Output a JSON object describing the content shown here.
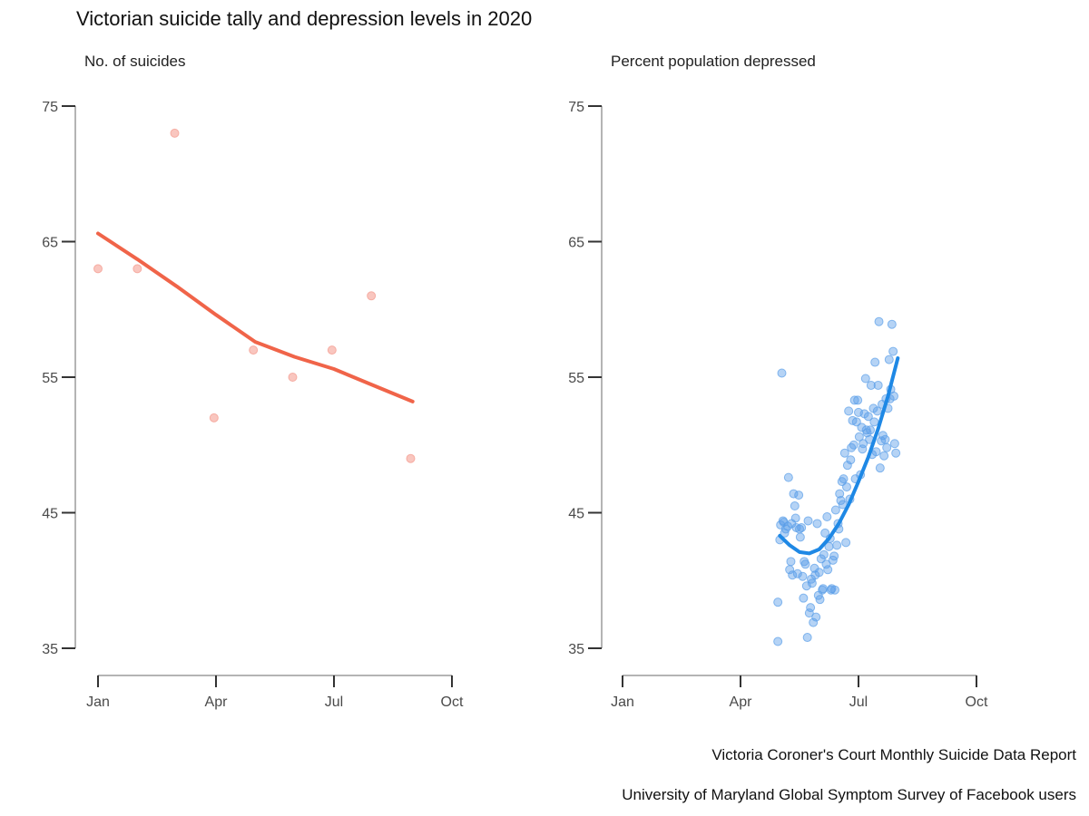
{
  "title": "Victorian suicide tally and depression levels in 2020",
  "captions": [
    "Victoria Coroner's Court Monthly Suicide Data Report",
    "University of Maryland Global Symptom Survey of Facebook users"
  ],
  "chart_data": [
    {
      "type": "scatter",
      "subtitle": "No. of suicides",
      "color": "#f06449",
      "point_color": "#f4978a",
      "x_unit": "month index (0 = Jan 1)",
      "xlim": [
        0,
        9
      ],
      "ylim": [
        35,
        75
      ],
      "xticks": [
        {
          "v": 0,
          "label": "Jan"
        },
        {
          "v": 3,
          "label": "Apr"
        },
        {
          "v": 6,
          "label": "Jul"
        },
        {
          "v": 9,
          "label": "Oct"
        }
      ],
      "yticks": [
        75,
        65,
        55,
        45,
        35
      ],
      "points": [
        {
          "x": 0.0,
          "y": 63
        },
        {
          "x": 1.0,
          "y": 63
        },
        {
          "x": 1.95,
          "y": 73
        },
        {
          "x": 2.95,
          "y": 52
        },
        {
          "x": 3.95,
          "y": 57
        },
        {
          "x": 4.95,
          "y": 55
        },
        {
          "x": 5.95,
          "y": 57
        },
        {
          "x": 6.95,
          "y": 61
        },
        {
          "x": 7.95,
          "y": 49
        }
      ],
      "trend": [
        {
          "x": 0.0,
          "y": 65.6
        },
        {
          "x": 1.0,
          "y": 63.7
        },
        {
          "x": 2.0,
          "y": 61.7
        },
        {
          "x": 3.0,
          "y": 59.6
        },
        {
          "x": 4.0,
          "y": 57.6
        },
        {
          "x": 5.0,
          "y": 56.5
        },
        {
          "x": 6.0,
          "y": 55.6
        },
        {
          "x": 7.0,
          "y": 54.4
        },
        {
          "x": 8.0,
          "y": 53.2
        }
      ]
    },
    {
      "type": "scatter",
      "subtitle": "Percent population depressed",
      "color": "#1e88e5",
      "point_color": "#5a9ee8",
      "x_unit": "month index (0 = Jan 1)",
      "xlim": [
        0,
        9
      ],
      "ylim": [
        35,
        75
      ],
      "xticks": [
        {
          "v": 0,
          "label": "Jan"
        },
        {
          "v": 3,
          "label": "Apr"
        },
        {
          "v": 6,
          "label": "Jul"
        },
        {
          "v": 9,
          "label": "Oct"
        }
      ],
      "yticks": [
        75,
        65,
        55,
        45,
        35
      ],
      "points": [
        {
          "x": 3.95,
          "y": 35.5
        },
        {
          "x": 3.95,
          "y": 38.4
        },
        {
          "x": 4.0,
          "y": 43.0
        },
        {
          "x": 4.02,
          "y": 44.1
        },
        {
          "x": 4.05,
          "y": 55.3
        },
        {
          "x": 4.08,
          "y": 44.4
        },
        {
          "x": 4.1,
          "y": 44.3
        },
        {
          "x": 4.12,
          "y": 43.5
        },
        {
          "x": 4.15,
          "y": 43.8
        },
        {
          "x": 4.2,
          "y": 44.0
        },
        {
          "x": 4.22,
          "y": 47.6
        },
        {
          "x": 4.25,
          "y": 40.8
        },
        {
          "x": 4.28,
          "y": 41.4
        },
        {
          "x": 4.3,
          "y": 44.2
        },
        {
          "x": 4.32,
          "y": 40.4
        },
        {
          "x": 4.35,
          "y": 46.4
        },
        {
          "x": 4.38,
          "y": 45.5
        },
        {
          "x": 4.4,
          "y": 44.6
        },
        {
          "x": 4.42,
          "y": 43.9
        },
        {
          "x": 4.45,
          "y": 40.5
        },
        {
          "x": 4.48,
          "y": 46.3
        },
        {
          "x": 4.5,
          "y": 43.8
        },
        {
          "x": 4.52,
          "y": 43.2
        },
        {
          "x": 4.55,
          "y": 43.9
        },
        {
          "x": 4.58,
          "y": 40.3
        },
        {
          "x": 4.6,
          "y": 38.7
        },
        {
          "x": 4.62,
          "y": 41.4
        },
        {
          "x": 4.65,
          "y": 41.2
        },
        {
          "x": 4.68,
          "y": 39.6
        },
        {
          "x": 4.7,
          "y": 35.8
        },
        {
          "x": 4.72,
          "y": 44.4
        },
        {
          "x": 4.75,
          "y": 37.6
        },
        {
          "x": 4.78,
          "y": 38.0
        },
        {
          "x": 4.8,
          "y": 40.1
        },
        {
          "x": 4.82,
          "y": 39.8
        },
        {
          "x": 4.85,
          "y": 36.9
        },
        {
          "x": 4.88,
          "y": 40.9
        },
        {
          "x": 4.9,
          "y": 40.4
        },
        {
          "x": 4.92,
          "y": 37.3
        },
        {
          "x": 4.95,
          "y": 44.2
        },
        {
          "x": 4.98,
          "y": 38.9
        },
        {
          "x": 5.0,
          "y": 40.6
        },
        {
          "x": 5.02,
          "y": 38.6
        },
        {
          "x": 5.05,
          "y": 41.6
        },
        {
          "x": 5.08,
          "y": 39.3
        },
        {
          "x": 5.1,
          "y": 39.4
        },
        {
          "x": 5.12,
          "y": 41.9
        },
        {
          "x": 5.15,
          "y": 43.5
        },
        {
          "x": 5.18,
          "y": 41.2
        },
        {
          "x": 5.2,
          "y": 44.7
        },
        {
          "x": 5.22,
          "y": 40.8
        },
        {
          "x": 5.25,
          "y": 42.5
        },
        {
          "x": 5.28,
          "y": 43.1
        },
        {
          "x": 5.3,
          "y": 39.3
        },
        {
          "x": 5.32,
          "y": 39.4
        },
        {
          "x": 5.35,
          "y": 41.5
        },
        {
          "x": 5.38,
          "y": 41.8
        },
        {
          "x": 5.4,
          "y": 39.3
        },
        {
          "x": 5.42,
          "y": 45.2
        },
        {
          "x": 5.45,
          "y": 42.6
        },
        {
          "x": 5.48,
          "y": 44.2
        },
        {
          "x": 5.5,
          "y": 43.8
        },
        {
          "x": 5.52,
          "y": 46.4
        },
        {
          "x": 5.55,
          "y": 45.9
        },
        {
          "x": 5.58,
          "y": 47.3
        },
        {
          "x": 5.6,
          "y": 45.6
        },
        {
          "x": 5.62,
          "y": 47.5
        },
        {
          "x": 5.65,
          "y": 49.4
        },
        {
          "x": 5.68,
          "y": 42.8
        },
        {
          "x": 5.7,
          "y": 46.9
        },
        {
          "x": 5.72,
          "y": 48.5
        },
        {
          "x": 5.75,
          "y": 52.5
        },
        {
          "x": 5.78,
          "y": 46.0
        },
        {
          "x": 5.8,
          "y": 48.9
        },
        {
          "x": 5.82,
          "y": 49.8
        },
        {
          "x": 5.85,
          "y": 51.8
        },
        {
          "x": 5.88,
          "y": 50.0
        },
        {
          "x": 5.9,
          "y": 53.3
        },
        {
          "x": 5.92,
          "y": 47.5
        },
        {
          "x": 5.95,
          "y": 51.7
        },
        {
          "x": 5.98,
          "y": 53.3
        },
        {
          "x": 6.0,
          "y": 52.4
        },
        {
          "x": 6.02,
          "y": 50.6
        },
        {
          "x": 6.05,
          "y": 47.8
        },
        {
          "x": 6.08,
          "y": 51.3
        },
        {
          "x": 6.1,
          "y": 49.7
        },
        {
          "x": 6.12,
          "y": 50.1
        },
        {
          "x": 6.15,
          "y": 52.3
        },
        {
          "x": 6.18,
          "y": 54.9
        },
        {
          "x": 6.2,
          "y": 51.1
        },
        {
          "x": 6.22,
          "y": 50.9
        },
        {
          "x": 6.25,
          "y": 52.1
        },
        {
          "x": 6.28,
          "y": 50.4
        },
        {
          "x": 6.3,
          "y": 51.1
        },
        {
          "x": 6.32,
          "y": 54.4
        },
        {
          "x": 6.35,
          "y": 49.3
        },
        {
          "x": 6.38,
          "y": 52.7
        },
        {
          "x": 6.4,
          "y": 51.7
        },
        {
          "x": 6.42,
          "y": 56.1
        },
        {
          "x": 6.45,
          "y": 49.5
        },
        {
          "x": 6.48,
          "y": 52.5
        },
        {
          "x": 6.5,
          "y": 54.4
        },
        {
          "x": 6.52,
          "y": 59.1
        },
        {
          "x": 6.55,
          "y": 48.3
        },
        {
          "x": 6.58,
          "y": 50.3
        },
        {
          "x": 6.6,
          "y": 53.0
        },
        {
          "x": 6.62,
          "y": 50.7
        },
        {
          "x": 6.65,
          "y": 49.2
        },
        {
          "x": 6.68,
          "y": 50.4
        },
        {
          "x": 6.7,
          "y": 53.4
        },
        {
          "x": 6.72,
          "y": 49.8
        },
        {
          "x": 6.75,
          "y": 52.7
        },
        {
          "x": 6.78,
          "y": 56.3
        },
        {
          "x": 6.8,
          "y": 53.4
        },
        {
          "x": 6.82,
          "y": 54.1
        },
        {
          "x": 6.85,
          "y": 58.9
        },
        {
          "x": 6.88,
          "y": 56.9
        },
        {
          "x": 6.9,
          "y": 53.6
        },
        {
          "x": 6.92,
          "y": 50.1
        },
        {
          "x": 6.95,
          "y": 49.4
        }
      ],
      "trend": [
        {
          "x": 4.0,
          "y": 43.3
        },
        {
          "x": 4.25,
          "y": 42.6
        },
        {
          "x": 4.5,
          "y": 42.1
        },
        {
          "x": 4.75,
          "y": 42.0
        },
        {
          "x": 5.0,
          "y": 42.3
        },
        {
          "x": 5.25,
          "y": 43.1
        },
        {
          "x": 5.5,
          "y": 44.2
        },
        {
          "x": 5.75,
          "y": 45.6
        },
        {
          "x": 6.0,
          "y": 47.3
        },
        {
          "x": 6.25,
          "y": 49.1
        },
        {
          "x": 6.5,
          "y": 51.2
        },
        {
          "x": 6.75,
          "y": 53.6
        },
        {
          "x": 7.0,
          "y": 56.4
        }
      ]
    }
  ]
}
